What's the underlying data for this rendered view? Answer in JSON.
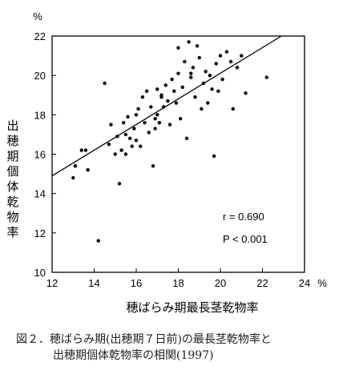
{
  "chart_data": {
    "type": "scatter",
    "ylabel": "出穂期個体乾物率",
    "xlabel": "穂ばらみ期最長茎乾物率",
    "y_unit": "%",
    "x_unit": "%",
    "xlim": [
      12,
      24
    ],
    "ylim": [
      10,
      22
    ],
    "x_ticks": [
      "12",
      "14",
      "16",
      "18",
      "20",
      "22",
      "24"
    ],
    "y_ticks": [
      "10",
      "12",
      "14",
      "16",
      "18",
      "20",
      "22"
    ],
    "grid": false,
    "annotations": {
      "r": "r = 0.690",
      "p": "P < 0.001"
    },
    "trendline": {
      "x": [
        12,
        22.9
      ],
      "y": [
        14.9,
        22.0
      ]
    },
    "points": [
      [
        13.0,
        14.8
      ],
      [
        13.1,
        15.4
      ],
      [
        13.4,
        16.2
      ],
      [
        13.6,
        16.2
      ],
      [
        13.7,
        15.2
      ],
      [
        14.2,
        11.6
      ],
      [
        14.5,
        19.6
      ],
      [
        14.7,
        16.5
      ],
      [
        14.8,
        17.5
      ],
      [
        15.0,
        16.0
      ],
      [
        15.1,
        16.9
      ],
      [
        15.2,
        14.5
      ],
      [
        15.3,
        16.2
      ],
      [
        15.4,
        17.6
      ],
      [
        15.5,
        17.0
      ],
      [
        15.6,
        17.9
      ],
      [
        15.7,
        16.8
      ],
      [
        15.8,
        16.4
      ],
      [
        15.9,
        17.3
      ],
      [
        16.0,
        16.7
      ],
      [
        16.1,
        18.3
      ],
      [
        16.2,
        16.4
      ],
      [
        16.3,
        18.9
      ],
      [
        16.4,
        17.6
      ],
      [
        16.5,
        19.2
      ],
      [
        16.6,
        17.1
      ],
      [
        16.7,
        18.4
      ],
      [
        16.8,
        15.4
      ],
      [
        16.9,
        17.8
      ],
      [
        17.0,
        19.3
      ],
      [
        17.0,
        18.0
      ],
      [
        17.1,
        17.6
      ],
      [
        17.2,
        19.0
      ],
      [
        17.3,
        18.4
      ],
      [
        17.4,
        19.5
      ],
      [
        17.5,
        18.7
      ],
      [
        17.6,
        17.5
      ],
      [
        17.7,
        19.8
      ],
      [
        17.8,
        19.2
      ],
      [
        17.9,
        18.6
      ],
      [
        18.0,
        20.1
      ],
      [
        18.1,
        17.8
      ],
      [
        18.2,
        19.4
      ],
      [
        18.3,
        20.7
      ],
      [
        18.4,
        16.8
      ],
      [
        18.5,
        21.7
      ],
      [
        18.6,
        19.9
      ],
      [
        18.7,
        20.4
      ],
      [
        18.8,
        18.9
      ],
      [
        18.9,
        21.5
      ],
      [
        19.0,
        20.9
      ],
      [
        19.1,
        18.3
      ],
      [
        19.2,
        19.6
      ],
      [
        19.3,
        20.2
      ],
      [
        19.4,
        18.6
      ],
      [
        19.5,
        20.0
      ],
      [
        19.6,
        19.3
      ],
      [
        19.7,
        15.9
      ],
      [
        19.8,
        20.6
      ],
      [
        19.9,
        19.2
      ],
      [
        20.0,
        21.0
      ],
      [
        20.1,
        19.8
      ],
      [
        20.3,
        21.2
      ],
      [
        20.5,
        20.7
      ],
      [
        20.6,
        18.3
      ],
      [
        20.8,
        20.4
      ],
      [
        21.0,
        21.0
      ],
      [
        21.2,
        19.1
      ],
      [
        22.2,
        19.9
      ],
      [
        18.0,
        21.4
      ],
      [
        17.2,
        18.9
      ],
      [
        16.0,
        18.0
      ],
      [
        15.5,
        16.0
      ],
      [
        16.9,
        17.3
      ],
      [
        18.6,
        20.1
      ]
    ]
  },
  "caption": {
    "line1": "図２．穂ばらみ期(出穂期７日前)の最長茎乾物率と",
    "line2": "出穂期個体乾物率の相関(1997)"
  }
}
